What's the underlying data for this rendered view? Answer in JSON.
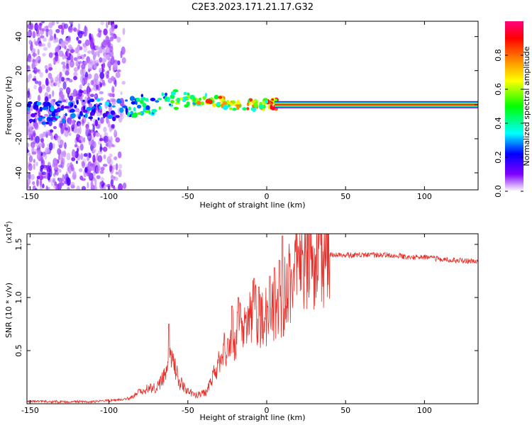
{
  "figure": {
    "title": "C2E3.2023.171.21.17.G32"
  },
  "chart_data": [
    {
      "type": "heatmap",
      "xlabel": "Height of straight line (km)",
      "ylabel": "Frequency (Hz)",
      "xlim": [
        -152,
        134
      ],
      "ylim": [
        -50,
        49
      ],
      "x_ticks": [
        -150,
        -100,
        -50,
        0,
        50,
        100
      ],
      "y_ticks": [
        -40,
        -20,
        0,
        20,
        40
      ],
      "colorbar": {
        "label": "Normalized spectral amplitude",
        "range": [
          0,
          1
        ],
        "ticks": [
          0.0,
          0.2,
          0.4,
          0.6,
          0.8
        ],
        "colors": [
          "#ffffff",
          "#8000ff",
          "#0000ff",
          "#00ffff",
          "#00ff00",
          "#ffff00",
          "#ff8000",
          "#ff0000",
          "#ff0080"
        ]
      },
      "ridge": [
        {
          "x": -150,
          "y": -4,
          "amp": 0.28
        },
        {
          "x": -140,
          "y": -5,
          "amp": 0.3
        },
        {
          "x": -130,
          "y": -4,
          "amp": 0.3
        },
        {
          "x": -120,
          "y": -3,
          "amp": 0.28
        },
        {
          "x": -100,
          "y": -3,
          "amp": 0.32
        },
        {
          "x": -90,
          "y": -3,
          "amp": 0.4
        },
        {
          "x": -80,
          "y": 0,
          "amp": 0.5
        },
        {
          "x": -70,
          "y": 1,
          "amp": 0.5
        },
        {
          "x": -60,
          "y": 2,
          "amp": 0.55
        },
        {
          "x": -50,
          "y": 3,
          "amp": 0.6
        },
        {
          "x": -40,
          "y": 3,
          "amp": 0.85
        },
        {
          "x": -30,
          "y": 2,
          "amp": 0.8
        },
        {
          "x": -20,
          "y": 0,
          "amp": 0.8
        },
        {
          "x": -10,
          "y": 0,
          "amp": 0.8
        },
        {
          "x": 0,
          "y": 0,
          "amp": 0.85
        },
        {
          "x": 10,
          "y": 0,
          "amp": 1.0
        },
        {
          "x": 50,
          "y": 0,
          "amp": 1.0
        },
        {
          "x": 100,
          "y": 0,
          "amp": 1.0
        },
        {
          "x": 134,
          "y": 0,
          "amp": 1.0
        }
      ]
    },
    {
      "type": "line",
      "xlabel": "Height of straight line (km)",
      "ylabel": "SNR (10 * v/v)",
      "y_multiplier": "(x10^4)",
      "xlim": [
        -152,
        134
      ],
      "ylim": [
        0,
        1.6
      ],
      "x_ticks": [
        -150,
        -100,
        -50,
        0,
        50,
        100
      ],
      "y_ticks": [
        0.5,
        1.0,
        1.5
      ],
      "series": [
        {
          "color": "#e8302a",
          "x": [
            -152,
            -140,
            -130,
            -120,
            -110,
            -100,
            -90,
            -85,
            -80,
            -75,
            -70,
            -65,
            -62,
            -60,
            -57,
            -55,
            -50,
            -45,
            -40,
            -38,
            -35,
            -33,
            -30,
            -27,
            -25,
            -22,
            -20,
            -18,
            -15,
            -12,
            -10,
            -8,
            -5,
            -3,
            0,
            2,
            5,
            8,
            10,
            12,
            15,
            18,
            20,
            25,
            30,
            35,
            40,
            45,
            50,
            60,
            70,
            80,
            90,
            100,
            110,
            120,
            134
          ],
          "y": [
            0.02,
            0.02,
            0.02,
            0.02,
            0.02,
            0.03,
            0.04,
            0.06,
            0.12,
            0.15,
            0.15,
            0.25,
            0.45,
            0.4,
            0.3,
            0.2,
            0.12,
            0.08,
            0.1,
            0.12,
            0.25,
            0.3,
            0.4,
            0.5,
            0.45,
            0.7,
            0.55,
            0.85,
            0.65,
            0.75,
            0.8,
            0.9,
            0.75,
            0.85,
            0.8,
            0.95,
            0.85,
            0.9,
            0.9,
            1.1,
            1.15,
            1.2,
            1.25,
            1.3,
            1.35,
            1.38,
            1.4,
            1.41,
            1.4,
            1.4,
            1.4,
            1.4,
            1.38,
            1.38,
            1.36,
            1.35,
            1.34
          ],
          "spikes": [
            {
              "x": -62,
              "y": 0.75
            },
            {
              "x": -22,
              "y": 0.92
            },
            {
              "x": -18,
              "y": 1.0
            },
            {
              "x": -8,
              "y": 1.18
            },
            {
              "x": -5,
              "y": 1.1
            },
            {
              "x": 2,
              "y": 1.2
            },
            {
              "x": 5,
              "y": 1.28
            },
            {
              "x": 8,
              "y": 1.35
            },
            {
              "x": 10,
              "y": 1.58
            }
          ]
        }
      ]
    }
  ]
}
